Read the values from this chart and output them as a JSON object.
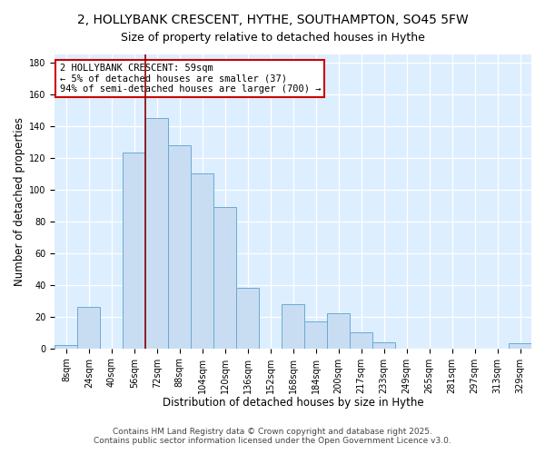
{
  "title": "2, HOLLYBANK CRESCENT, HYTHE, SOUTHAMPTON, SO45 5FW",
  "subtitle": "Size of property relative to detached houses in Hythe",
  "xlabel": "Distribution of detached houses by size in Hythe",
  "ylabel": "Number of detached properties",
  "bar_labels": [
    "8sqm",
    "24sqm",
    "40sqm",
    "56sqm",
    "72sqm",
    "88sqm",
    "104sqm",
    "120sqm",
    "136sqm",
    "152sqm",
    "168sqm",
    "184sqm",
    "200sqm",
    "217sqm",
    "233sqm",
    "249sqm",
    "265sqm",
    "281sqm",
    "297sqm",
    "313sqm",
    "329sqm"
  ],
  "bar_values": [
    2,
    26,
    0,
    123,
    145,
    128,
    110,
    89,
    38,
    0,
    28,
    17,
    22,
    10,
    4,
    0,
    0,
    0,
    0,
    0,
    3
  ],
  "bar_color": "#c9ddf2",
  "bar_edge_color": "#6aaad4",
  "vline_x": 3.5,
  "vline_color": "#8b0000",
  "annotation_line1": "2 HOLLYBANK CRESCENT: 59sqm",
  "annotation_line2": "← 5% of detached houses are smaller (37)",
  "annotation_line3": "94% of semi-detached houses are larger (700) →",
  "annotation_box_color": "#ffffff",
  "annotation_box_edge": "#cc0000",
  "ylim": [
    0,
    185
  ],
  "yticks": [
    0,
    20,
    40,
    60,
    80,
    100,
    120,
    140,
    160,
    180
  ],
  "footer_line1": "Contains HM Land Registry data © Crown copyright and database right 2025.",
  "footer_line2": "Contains public sector information licensed under the Open Government Licence v3.0.",
  "background_color": "#ddeeff",
  "grid_color": "#c0d8ee",
  "title_fontsize": 10,
  "axis_label_fontsize": 8.5,
  "tick_fontsize": 7,
  "annotation_fontsize": 7.5,
  "footer_fontsize": 6.5
}
